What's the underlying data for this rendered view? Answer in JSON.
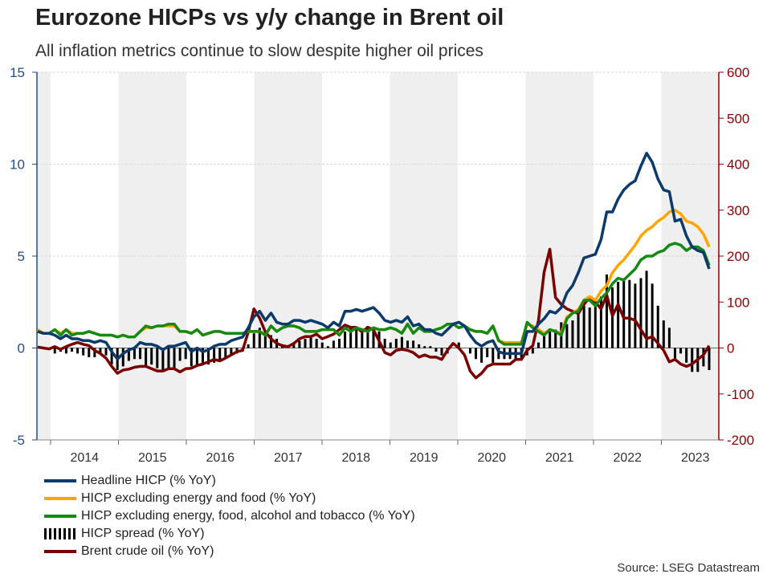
{
  "chart_data": {
    "type": "line",
    "title": "Eurozone HICPs vs y/y change in Brent oil",
    "subtitle": "All inflation metrics continue to slow despite higher oil prices",
    "start_month": "2013-11",
    "end_month": "2023-09",
    "left_axis": {
      "ylim": [
        -5,
        15
      ],
      "ticks": [
        "15",
        "10",
        "5",
        "0",
        "-5"
      ],
      "tick_values": [
        15,
        10,
        5,
        0,
        -5
      ],
      "color": "#1f4e8c"
    },
    "right_axis": {
      "ylim": [
        -200,
        600
      ],
      "ticks": [
        "600",
        "500",
        "400",
        "300",
        "200",
        "100",
        "0",
        "-100",
        "-200"
      ],
      "tick_values": [
        600,
        500,
        400,
        300,
        200,
        100,
        0,
        -100,
        -200
      ],
      "color": "#8b0000"
    },
    "x_tick_labels": [
      "2014",
      "2015",
      "2016",
      "2017",
      "2018",
      "2019",
      "2020",
      "2021",
      "2022",
      "2023"
    ],
    "grid": true,
    "legend_position": "bottom",
    "series": [
      {
        "name": "Headline HICP (% YoY)",
        "axis": "left",
        "kind": "line",
        "color": "#0b3a6b",
        "values": [
          0.9,
          0.8,
          0.8,
          0.7,
          0.5,
          0.7,
          0.5,
          0.5,
          0.4,
          0.4,
          0.3,
          0.4,
          0.3,
          -0.2,
          -0.6,
          -0.3,
          -0.1,
          0.0,
          0.3,
          0.2,
          0.2,
          0.1,
          -0.1,
          0.1,
          0.1,
          0.2,
          0.3,
          -0.2,
          0.0,
          -0.2,
          -0.1,
          0.1,
          0.2,
          0.2,
          0.4,
          0.5,
          0.6,
          1.1,
          1.7,
          2.0,
          1.5,
          1.9,
          1.4,
          1.3,
          1.3,
          1.5,
          1.5,
          1.4,
          1.5,
          1.4,
          1.3,
          1.1,
          1.4,
          1.2,
          2.0,
          2.0,
          2.1,
          2.0,
          2.1,
          2.2,
          1.9,
          1.5,
          1.4,
          1.5,
          1.4,
          1.7,
          1.2,
          1.3,
          1.0,
          1.0,
          0.8,
          0.7,
          1.0,
          1.3,
          1.4,
          1.2,
          0.7,
          0.3,
          0.1,
          0.3,
          0.4,
          -0.2,
          -0.3,
          -0.3,
          -0.3,
          -0.3,
          0.9,
          0.9,
          1.3,
          1.6,
          2.0,
          1.9,
          2.2,
          3.0,
          3.4,
          4.1,
          4.9,
          5.0,
          5.1,
          5.9,
          7.4,
          7.4,
          8.1,
          8.6,
          8.9,
          9.1,
          9.9,
          10.6,
          10.1,
          9.2,
          8.6,
          8.5,
          6.9,
          7.0,
          6.1,
          5.5,
          5.3,
          5.2,
          4.3
        ]
      },
      {
        "name": "HICP excluding energy and food (% YoY)",
        "axis": "left",
        "kind": "line",
        "color": "#ffa500",
        "values": [
          1.0,
          0.8,
          0.8,
          1.0,
          0.8,
          1.0,
          0.8,
          0.8,
          0.8,
          0.9,
          0.8,
          0.7,
          0.7,
          0.7,
          0.6,
          0.7,
          0.6,
          0.6,
          0.9,
          1.1,
          1.1,
          1.2,
          1.2,
          1.2,
          1.2,
          0.9,
          0.9,
          0.8,
          1.0,
          0.7,
          0.8,
          0.9,
          0.9,
          0.8,
          0.8,
          0.8,
          0.8,
          0.9,
          0.9,
          0.9,
          0.7,
          1.2,
          0.9,
          1.1,
          1.2,
          1.2,
          1.1,
          0.9,
          0.9,
          0.9,
          1.0,
          1.0,
          1.0,
          0.7,
          1.1,
          0.9,
          1.1,
          1.0,
          0.9,
          1.1,
          1.0,
          1.0,
          1.1,
          1.0,
          0.8,
          1.3,
          0.8,
          1.1,
          0.9,
          0.9,
          1.0,
          1.1,
          1.3,
          1.3,
          1.1,
          1.2,
          1.0,
          0.9,
          0.9,
          0.8,
          1.2,
          0.4,
          0.3,
          0.3,
          0.3,
          0.3,
          1.3,
          1.2,
          1.0,
          0.8,
          1.0,
          0.9,
          0.8,
          1.7,
          1.9,
          2.1,
          2.6,
          2.8,
          2.6,
          3.1,
          3.4,
          4.1,
          4.5,
          4.8,
          5.2,
          5.6,
          6.1,
          6.4,
          6.6,
          6.9,
          7.1,
          7.4,
          7.5,
          7.3,
          6.9,
          6.8,
          6.6,
          6.2,
          5.5
        ]
      },
      {
        "name": "HICP excluding energy, food, alcohol and tobacco (% YoY)",
        "axis": "left",
        "kind": "line",
        "color": "#148a14",
        "values": [
          0.9,
          0.8,
          0.8,
          1.0,
          0.7,
          1.0,
          0.7,
          0.8,
          0.8,
          0.9,
          0.8,
          0.7,
          0.7,
          0.7,
          0.6,
          0.7,
          0.6,
          0.6,
          0.9,
          1.2,
          1.1,
          1.2,
          1.2,
          1.3,
          1.3,
          0.9,
          0.9,
          0.8,
          1.0,
          0.7,
          0.8,
          0.9,
          0.9,
          0.8,
          0.8,
          0.8,
          0.8,
          0.9,
          0.9,
          0.9,
          0.7,
          1.2,
          0.9,
          1.1,
          1.2,
          1.2,
          1.1,
          0.9,
          0.9,
          0.9,
          1.0,
          1.0,
          1.0,
          0.7,
          1.1,
          0.9,
          1.1,
          1.0,
          0.9,
          1.1,
          1.0,
          1.0,
          1.1,
          1.0,
          0.8,
          1.3,
          0.8,
          1.1,
          0.9,
          0.9,
          1.0,
          1.1,
          1.3,
          1.3,
          1.1,
          1.2,
          1.0,
          0.9,
          0.9,
          0.8,
          1.2,
          0.4,
          0.2,
          0.2,
          0.2,
          0.2,
          1.4,
          1.1,
          0.9,
          0.7,
          1.0,
          0.9,
          0.7,
          1.6,
          1.9,
          2.0,
          2.6,
          2.6,
          2.3,
          2.7,
          3.0,
          3.5,
          3.8,
          3.7,
          4.0,
          4.3,
          4.8,
          5.0,
          5.0,
          5.2,
          5.3,
          5.6,
          5.7,
          5.6,
          5.3,
          5.5,
          5.5,
          5.3,
          4.5
        ]
      },
      {
        "name": "HICP spread (% YoY)",
        "axis": "left",
        "kind": "bar",
        "color": "#000000",
        "values": [
          0.0,
          0.0,
          0.0,
          -0.3,
          -0.2,
          -0.3,
          -0.2,
          -0.3,
          -0.4,
          -0.5,
          -0.5,
          -0.3,
          -0.4,
          -0.9,
          -1.2,
          -1.0,
          -0.7,
          -0.6,
          -0.6,
          -1.0,
          -0.9,
          -1.1,
          -1.3,
          -1.2,
          -1.2,
          -0.7,
          -0.6,
          -1.0,
          -1.0,
          -0.9,
          -0.9,
          -0.8,
          -0.7,
          -0.6,
          -0.4,
          -0.3,
          -0.2,
          0.2,
          0.8,
          1.1,
          0.8,
          0.7,
          0.5,
          0.2,
          0.1,
          0.3,
          0.4,
          0.5,
          0.6,
          0.5,
          0.3,
          0.1,
          0.4,
          0.5,
          0.9,
          1.1,
          1.0,
          1.0,
          1.2,
          1.1,
          0.9,
          0.5,
          0.3,
          0.5,
          0.6,
          0.4,
          0.4,
          0.2,
          0.1,
          0.1,
          -0.2,
          -0.4,
          -0.3,
          0.0,
          0.3,
          0.0,
          -0.3,
          -0.6,
          -0.8,
          -0.5,
          -0.8,
          -0.6,
          -0.6,
          -0.6,
          -0.6,
          -0.6,
          -0.4,
          -0.3,
          0.3,
          0.8,
          1.0,
          1.0,
          1.4,
          1.3,
          1.5,
          2.0,
          2.3,
          2.2,
          2.5,
          2.8,
          4.0,
          3.3,
          3.6,
          3.8,
          3.7,
          3.5,
          3.8,
          4.2,
          3.5,
          2.3,
          1.5,
          1.1,
          -0.6,
          -0.3,
          -0.8,
          -1.3,
          -1.3,
          -1.0,
          -1.2
        ]
      },
      {
        "name": "Brent crude oil (% YoY)",
        "axis": "right",
        "kind": "line",
        "color": "#7a0000",
        "values": [
          2,
          0,
          -2,
          3,
          -3,
          3,
          8,
          12,
          8,
          5,
          -5,
          -12,
          -22,
          -40,
          -55,
          -48,
          -46,
          -42,
          -40,
          -40,
          -45,
          -50,
          -50,
          -45,
          -45,
          -52,
          -45,
          -44,
          -38,
          -35,
          -30,
          -25,
          -28,
          -22,
          -15,
          -8,
          -5,
          35,
          85,
          65,
          35,
          20,
          10,
          5,
          3,
          10,
          20,
          25,
          25,
          30,
          20,
          25,
          30,
          40,
          50,
          45,
          45,
          35,
          45,
          40,
          15,
          -10,
          -15,
          -5,
          -3,
          -5,
          -10,
          -20,
          -15,
          -20,
          -20,
          -25,
          -5,
          10,
          0,
          -15,
          -50,
          -65,
          -55,
          -40,
          -35,
          -35,
          -35,
          -35,
          -25,
          -25,
          -5,
          5,
          60,
          165,
          215,
          110,
          95,
          85,
          80,
          75,
          95,
          110,
          100,
          85,
          115,
          70,
          95,
          65,
          65,
          60,
          40,
          20,
          25,
          10,
          -5,
          -30,
          -25,
          -35,
          -40,
          -35,
          -25,
          -15,
          5
        ]
      }
    ],
    "source": "Source: LSEG Datastream"
  }
}
